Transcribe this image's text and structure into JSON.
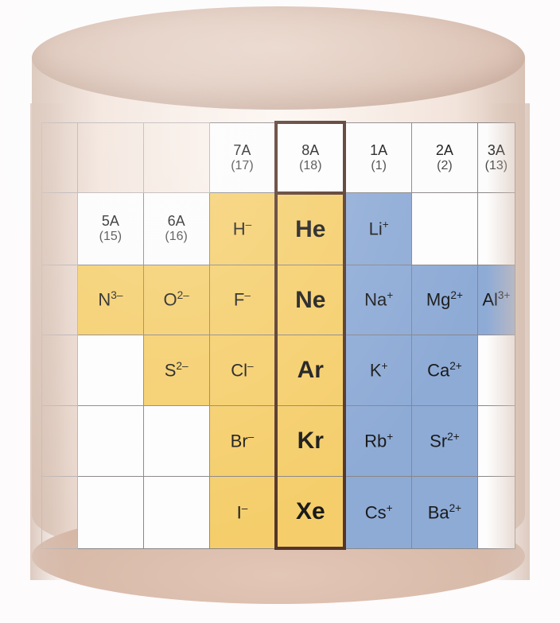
{
  "type": "infographic",
  "background_color": "#fdfbfc",
  "cylinder_colors": {
    "top": "#e2cbbf",
    "body": "#f2e3da",
    "shade": "#d8c2b5"
  },
  "cell_colors": {
    "yellow": "#f5ce6b",
    "blue": "#8eabd6",
    "white": "#fdfdfd",
    "border": "#8a8688",
    "noble_border": "#55352a"
  },
  "headers": {
    "c5A": {
      "g": "5A",
      "n": "(15)"
    },
    "c6A": {
      "g": "6A",
      "n": "(16)"
    },
    "c7A": {
      "g": "7A",
      "n": "(17)"
    },
    "c8A": {
      "g": "8A",
      "n": "(18)"
    },
    "c1A": {
      "g": "1A",
      "n": "(1)"
    },
    "c2A": {
      "g": "2A",
      "n": "(2)"
    },
    "c3A": {
      "g": "3A",
      "n": "(13)"
    }
  },
  "cells": {
    "Hminus": "H",
    "He": "He",
    "Liplus": "Li",
    "N3": "N",
    "O2": "O",
    "Fminus": "F",
    "Ne": "Ne",
    "Naplus": "Na",
    "Mg2": "Mg",
    "Al3": "Al",
    "S2": "S",
    "Clminus": "Cl",
    "Ar": "Ar",
    "Kplus": "K",
    "Ca2": "Ca",
    "Brminus": "Br",
    "Kr": "Kr",
    "Rbplus": "Rb",
    "Sr2": "Sr",
    "Iminus": "I",
    "Xe": "Xe",
    "Csplus": "Cs",
    "Ba2": "Ba"
  },
  "charges": {
    "minus": "–",
    "plus": "+",
    "2minus": "2–",
    "3minus": "3–",
    "2plus": "2+",
    "3plus": "3+"
  }
}
